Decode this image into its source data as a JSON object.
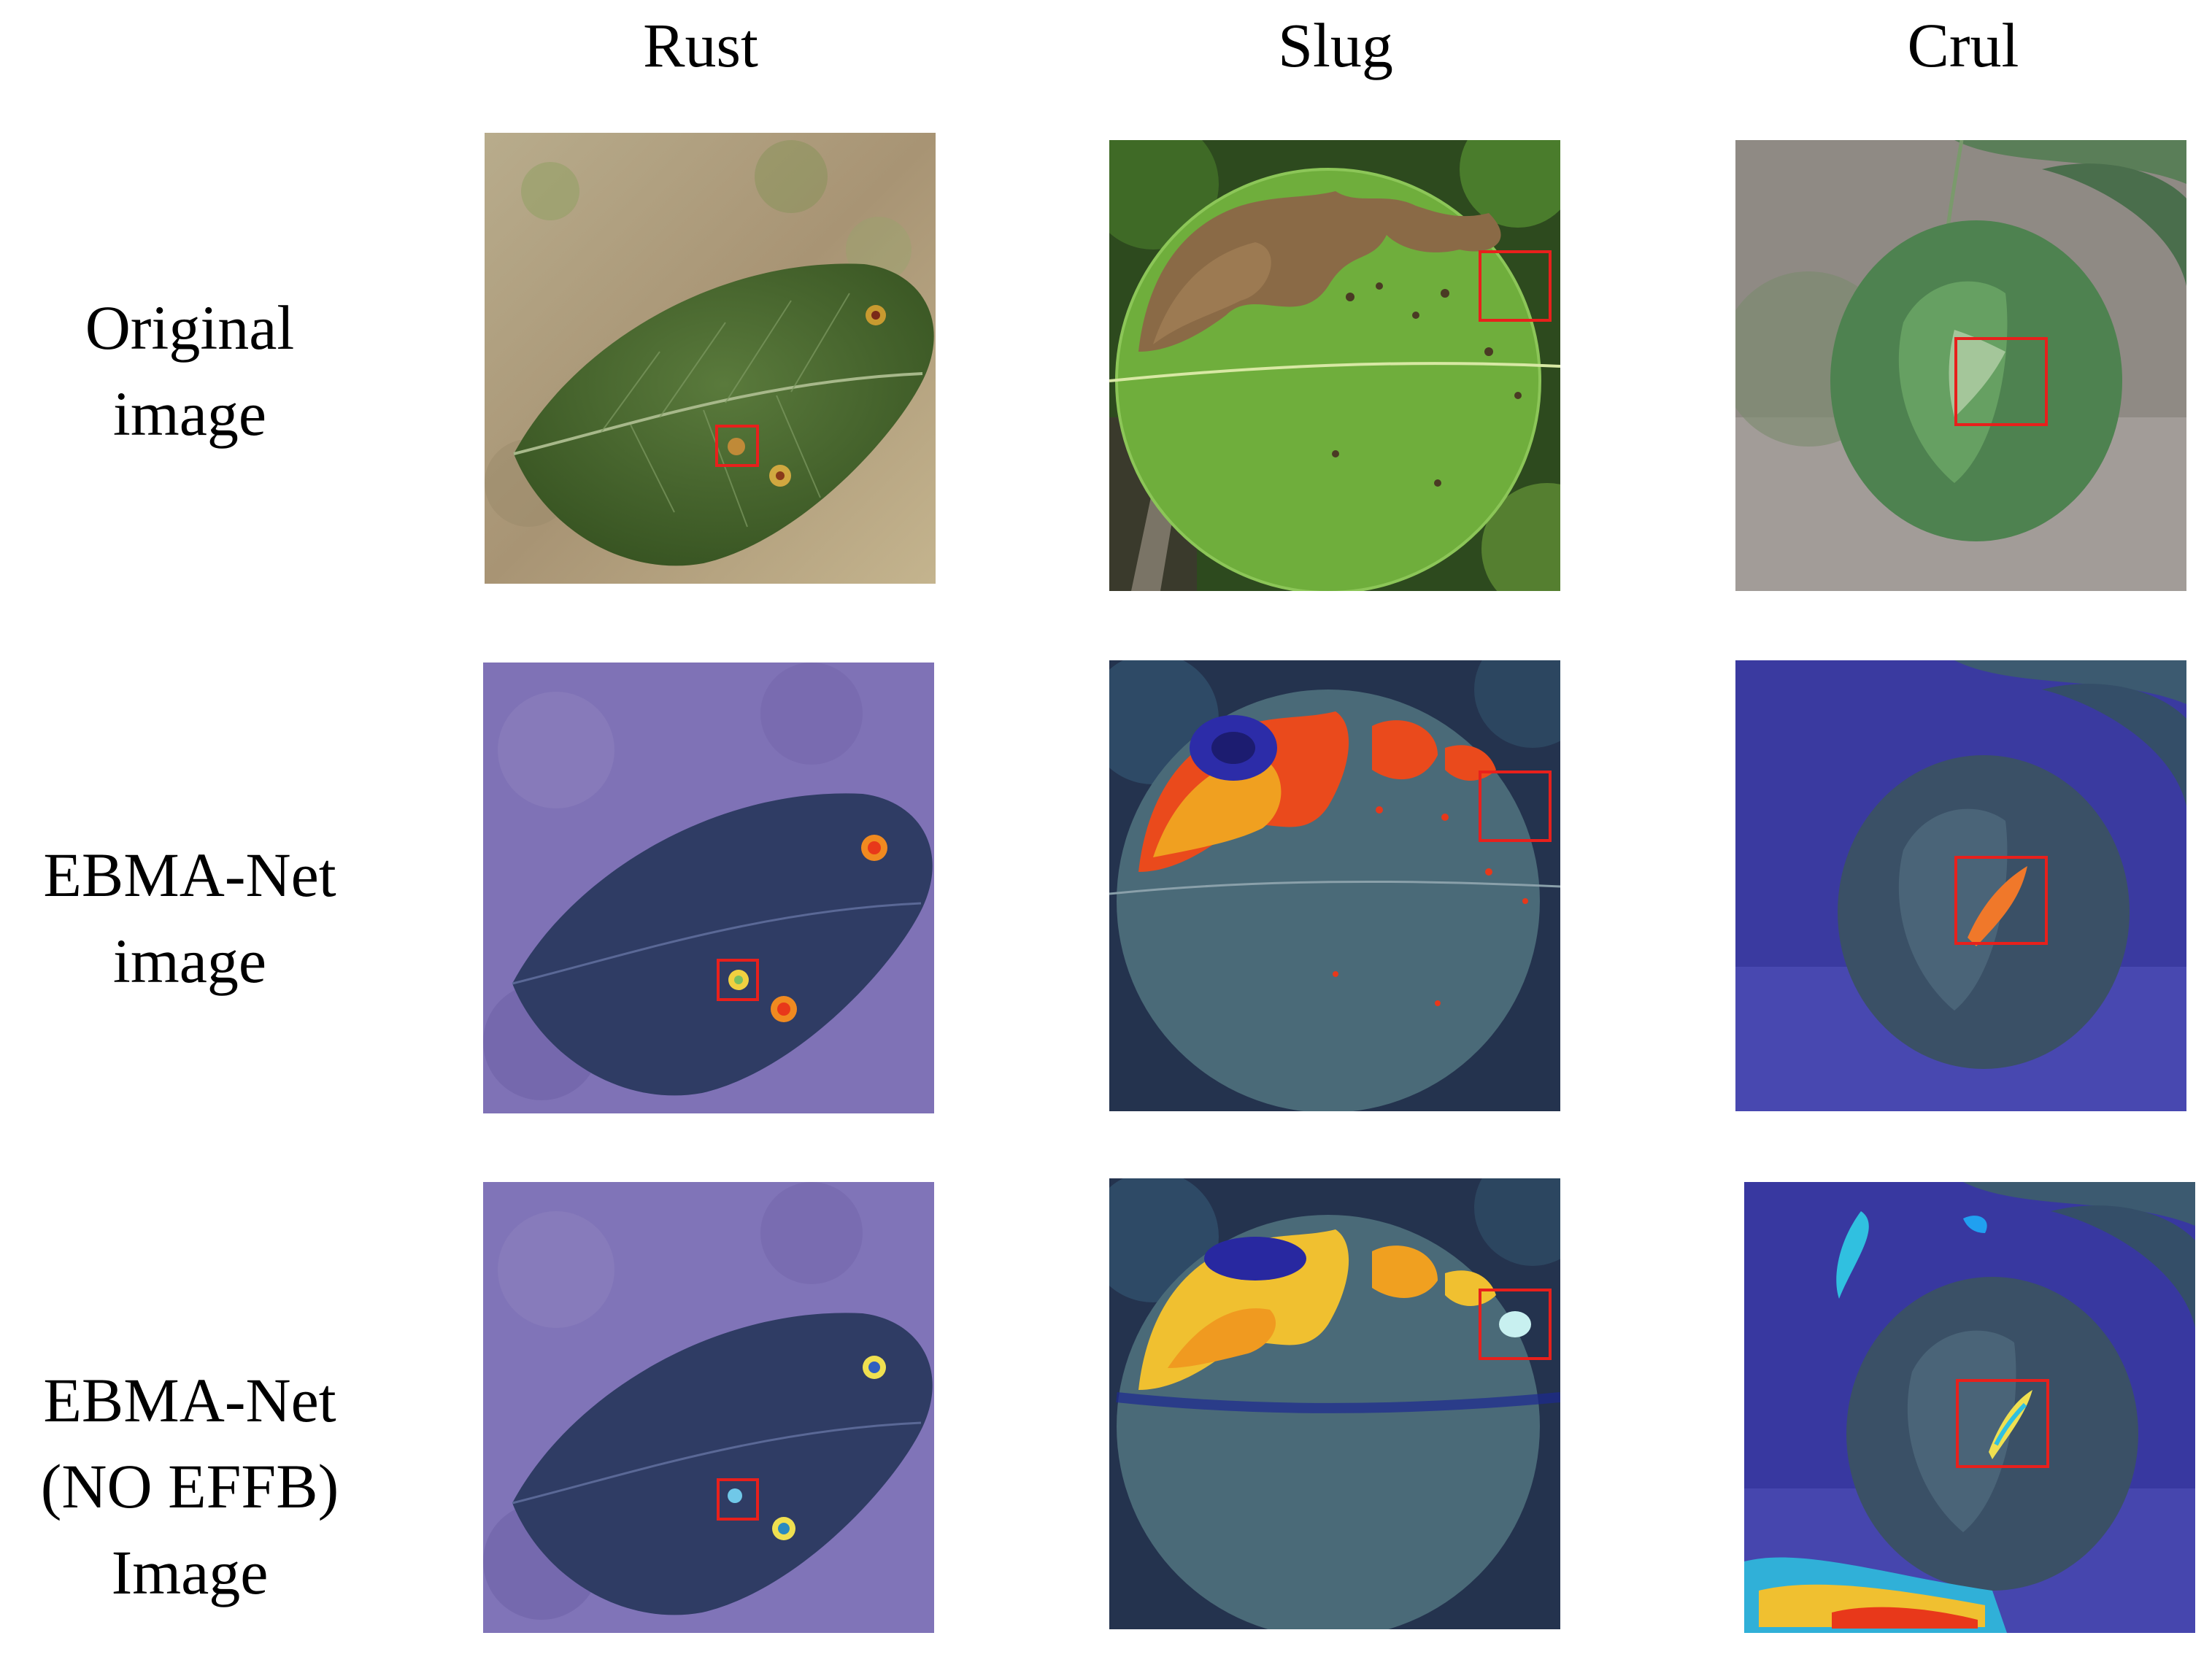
{
  "columns": {
    "rust": "Rust",
    "slug": "Slug",
    "crul": "Crul"
  },
  "rows": {
    "original": {
      "line1": "Original",
      "line2": "image"
    },
    "ebma": {
      "line1": "EBMA-Net",
      "line2": "image"
    },
    "noeffb": {
      "line1": "EBMA-Net",
      "line2": "(NO EFFB)",
      "line3": "Image"
    }
  },
  "colors": {
    "highlight_box": "#e8201c",
    "heat_hot": "#e8381a",
    "heat_warm": "#f0a020",
    "heat_cool": "#2020a0",
    "overlay_tint": "#4a4aa8"
  }
}
